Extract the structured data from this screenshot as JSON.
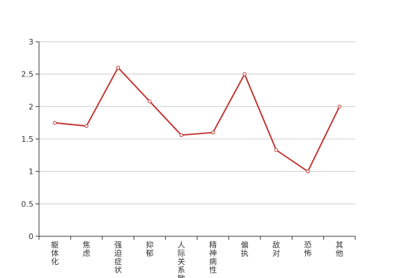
{
  "chart_data": {
    "type": "line",
    "categories": [
      "躯体化",
      "焦虑",
      "强迫症状",
      "抑郁",
      "人际关系敏感",
      "精神病性",
      "偏执",
      "敌对",
      "恐怖",
      "其他"
    ],
    "values": [
      1.75,
      1.7,
      2.6,
      2.08,
      1.56,
      1.6,
      2.5,
      1.33,
      1.0,
      2.0
    ],
    "ylim": [
      0,
      3
    ],
    "yticks": [
      "0",
      "0.5",
      "1",
      "1.5",
      "2",
      "2.5",
      "3"
    ],
    "grid": true,
    "legend": "none",
    "colors": {
      "line": "#c23531",
      "point_fill": "#ffffff",
      "grid": "#cccccc",
      "axis": "#333333"
    }
  }
}
